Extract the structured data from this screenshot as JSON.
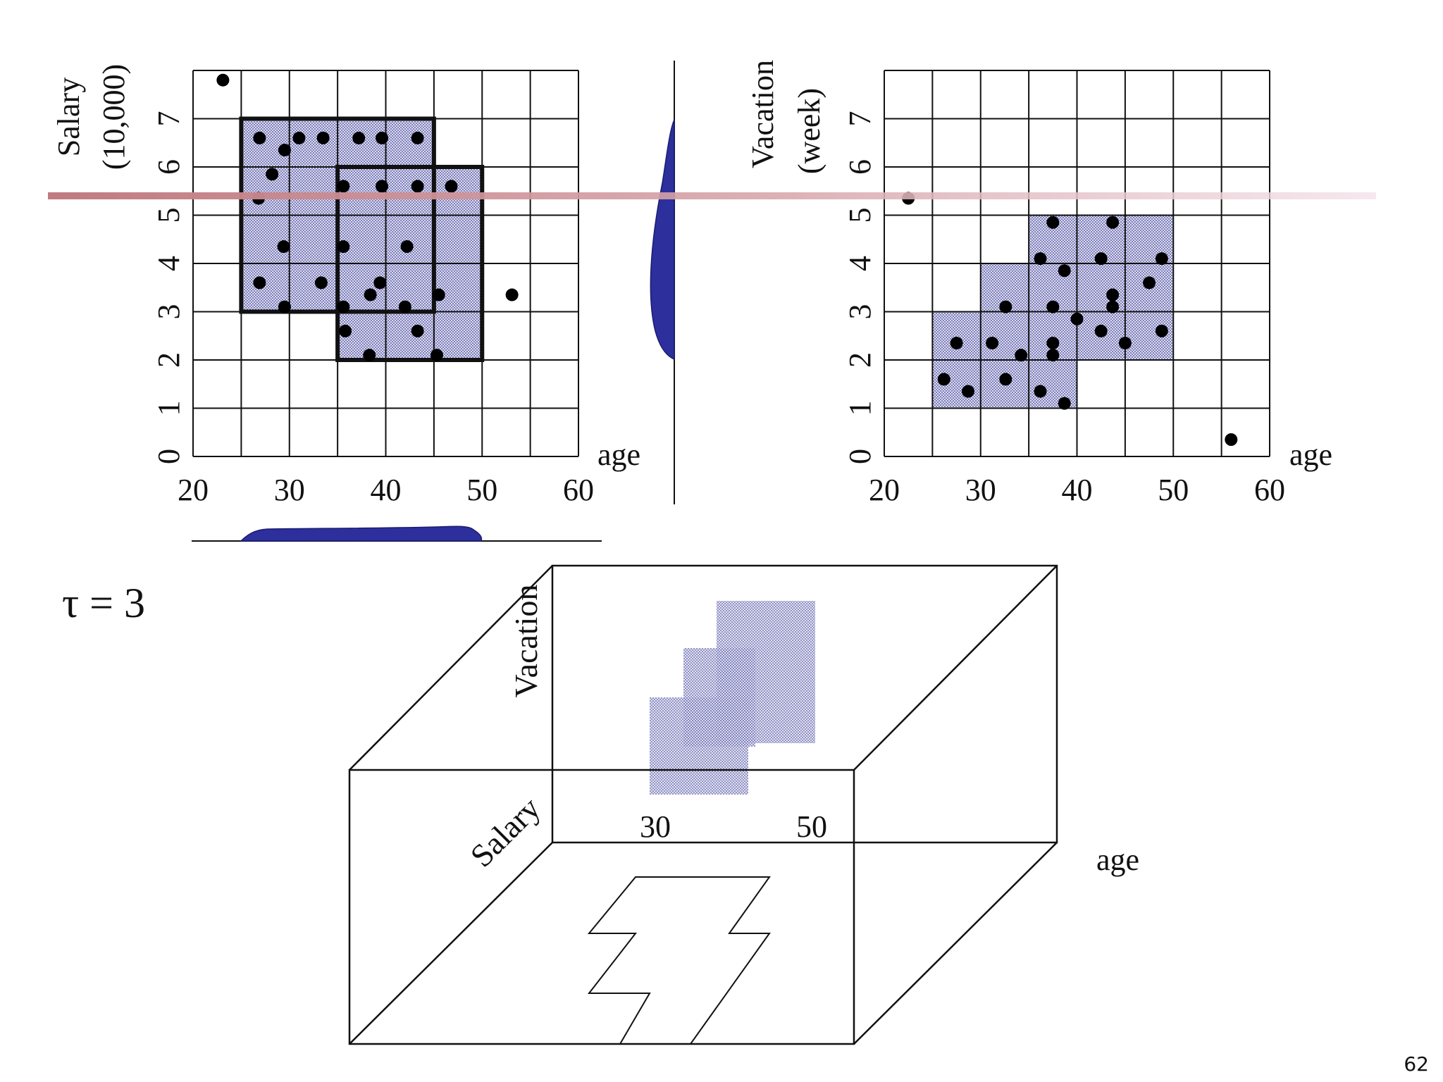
{
  "slide": {
    "page_number": "62",
    "tau_label": "τ = 3"
  },
  "colors": {
    "grid": "#111111",
    "dense_fill": "#c9cbe8",
    "dense_dot": "#2d2f8a",
    "density_blob": "#2c2f9c",
    "highlight_band": "#c7868a"
  },
  "left_plot": {
    "ylabel_line1": "Salary",
    "ylabel_line2": "(10,000)",
    "xlabel": "age",
    "x_ticks": [
      "20",
      "30",
      "40",
      "50",
      "60"
    ],
    "y_ticks": [
      "0",
      "1",
      "2",
      "3",
      "4",
      "5",
      "6",
      "7"
    ],
    "x_range": [
      20,
      60
    ],
    "y_range": [
      0,
      8
    ],
    "dense_units": [
      [
        25,
        3
      ],
      [
        25,
        4
      ],
      [
        25,
        5
      ],
      [
        25,
        6
      ],
      [
        30,
        3
      ],
      [
        30,
        4
      ],
      [
        30,
        5
      ],
      [
        30,
        6
      ],
      [
        35,
        2
      ],
      [
        35,
        3
      ],
      [
        35,
        4
      ],
      [
        35,
        5
      ],
      [
        35,
        6
      ],
      [
        40,
        2
      ],
      [
        40,
        3
      ],
      [
        40,
        4
      ],
      [
        40,
        5
      ],
      [
        40,
        6
      ],
      [
        45,
        2
      ],
      [
        45,
        3
      ],
      [
        45,
        4
      ],
      [
        45,
        5
      ]
    ],
    "bold_rects": [
      [
        25,
        3,
        45,
        7
      ],
      [
        35,
        2,
        50,
        6
      ]
    ],
    "points": [
      [
        23.1,
        7.8
      ],
      [
        26.9,
        6.6
      ],
      [
        29.5,
        6.35
      ],
      [
        31,
        6.6
      ],
      [
        33.5,
        6.6
      ],
      [
        37.2,
        6.6
      ],
      [
        39.6,
        6.6
      ],
      [
        43.3,
        6.6
      ],
      [
        28.2,
        5.85
      ],
      [
        26.8,
        5.35
      ],
      [
        35.6,
        5.6
      ],
      [
        39.6,
        5.6
      ],
      [
        43.3,
        5.6
      ],
      [
        46.8,
        5.6
      ],
      [
        29.4,
        4.35
      ],
      [
        35.6,
        4.35
      ],
      [
        42.2,
        4.35
      ],
      [
        26.9,
        3.6
      ],
      [
        33.3,
        3.6
      ],
      [
        39.4,
        3.6
      ],
      [
        29.5,
        3.1
      ],
      [
        35.6,
        3.1
      ],
      [
        38.4,
        3.35
      ],
      [
        42,
        3.1
      ],
      [
        45.5,
        3.35
      ],
      [
        35.8,
        2.6
      ],
      [
        43.3,
        2.6
      ],
      [
        38.3,
        2.1
      ],
      [
        45.3,
        2.1
      ],
      [
        53.1,
        3.35
      ]
    ],
    "density_curves": [
      "age",
      "salary"
    ]
  },
  "right_plot": {
    "ylabel_line1": "Vacation",
    "ylabel_line2": "(week)",
    "xlabel": "age",
    "x_ticks": [
      "20",
      "30",
      "40",
      "50",
      "60"
    ],
    "y_ticks": [
      "0",
      "1",
      "2",
      "3",
      "4",
      "5",
      "6",
      "7"
    ],
    "x_range": [
      20,
      60
    ],
    "y_range": [
      0,
      8
    ],
    "dense_units": [
      [
        25,
        1
      ],
      [
        25,
        2
      ],
      [
        30,
        1
      ],
      [
        30,
        2
      ],
      [
        30,
        3
      ],
      [
        35,
        1
      ],
      [
        35,
        2
      ],
      [
        35,
        3
      ],
      [
        35,
        4
      ],
      [
        40,
        2
      ],
      [
        40,
        3
      ],
      [
        40,
        4
      ],
      [
        45,
        2
      ],
      [
        45,
        3
      ],
      [
        45,
        4
      ]
    ],
    "points": [
      [
        22.5,
        5.35
      ],
      [
        26.2,
        1.6
      ],
      [
        27.5,
        2.35
      ],
      [
        28.7,
        1.35
      ],
      [
        31.2,
        2.35
      ],
      [
        32.6,
        1.6
      ],
      [
        32.6,
        3.1
      ],
      [
        34.2,
        2.1
      ],
      [
        36.2,
        1.35
      ],
      [
        37.5,
        2.35
      ],
      [
        37.5,
        2.1
      ],
      [
        37.5,
        3.1
      ],
      [
        38.7,
        1.1
      ],
      [
        36.2,
        4.1
      ],
      [
        37.5,
        4.85
      ],
      [
        38.7,
        3.85
      ],
      [
        40,
        2.85
      ],
      [
        42.5,
        2.6
      ],
      [
        42.5,
        4.1
      ],
      [
        43.7,
        4.85
      ],
      [
        43.7,
        3.35
      ],
      [
        43.7,
        3.1
      ],
      [
        45,
        2.35
      ],
      [
        47.5,
        3.6
      ],
      [
        48.8,
        2.6
      ],
      [
        48.8,
        4.1
      ],
      [
        56,
        0.35
      ]
    ]
  },
  "cube": {
    "vacation_label": "Vacation",
    "salary_label": "Salary",
    "age_label": "age",
    "age_tick_30": "30",
    "age_tick_50": "50"
  }
}
